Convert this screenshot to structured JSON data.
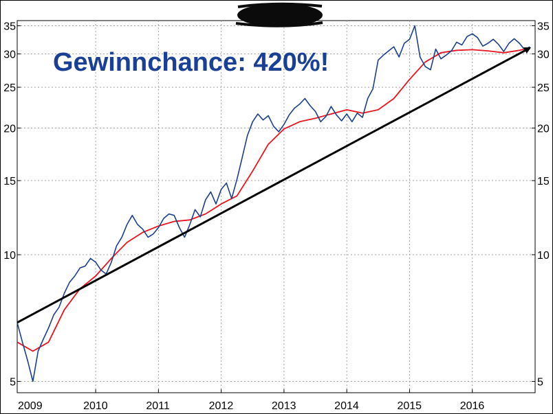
{
  "chart_data": {
    "type": "line",
    "title": "",
    "annotation": "Gewinnchance: 420%!",
    "xlabel": "",
    "ylabel": "",
    "y_scale": "log",
    "xlim": [
      "2008-10",
      "2017-01"
    ],
    "ylim": [
      4.7,
      36
    ],
    "grid": true,
    "y_ticks": [
      5,
      10,
      15,
      20,
      25,
      30,
      35
    ],
    "x_tick_labels": [
      "2009",
      "2010",
      "2011",
      "2012",
      "2013",
      "2014",
      "2015",
      "2016"
    ],
    "series": [
      {
        "role": "price",
        "color": "#1a3f8c",
        "x": [
          "2008-10",
          "2008-11",
          "2008-12",
          "2009-01",
          "2009-02",
          "2009-03",
          "2009-04",
          "2009-05",
          "2009-06",
          "2009-07",
          "2009-08",
          "2009-09",
          "2009-10",
          "2009-11",
          "2009-12",
          "2010-01",
          "2010-02",
          "2010-03",
          "2010-04",
          "2010-05",
          "2010-06",
          "2010-07",
          "2010-08",
          "2010-09",
          "2010-10",
          "2010-11",
          "2010-12",
          "2011-01",
          "2011-02",
          "2011-03",
          "2011-04",
          "2011-05",
          "2011-06",
          "2011-07",
          "2011-08",
          "2011-09",
          "2011-10",
          "2011-11",
          "2011-12",
          "2012-01",
          "2012-02",
          "2012-03",
          "2012-04",
          "2012-05",
          "2012-06",
          "2012-07",
          "2012-08",
          "2012-09",
          "2012-10",
          "2012-11",
          "2012-12",
          "2013-01",
          "2013-02",
          "2013-03",
          "2013-04",
          "2013-05",
          "2013-06",
          "2013-07",
          "2013-08",
          "2013-09",
          "2013-10",
          "2013-11",
          "2013-12",
          "2014-01",
          "2014-02",
          "2014-03",
          "2014-04",
          "2014-05",
          "2014-06",
          "2014-07",
          "2014-08",
          "2014-09",
          "2014-10",
          "2014-11",
          "2014-12",
          "2015-01",
          "2015-02",
          "2015-03",
          "2015-04",
          "2015-05",
          "2015-06",
          "2015-07",
          "2015-08",
          "2015-09",
          "2015-10",
          "2015-11",
          "2015-12",
          "2016-01",
          "2016-02",
          "2016-03",
          "2016-04",
          "2016-05",
          "2016-06",
          "2016-07",
          "2016-08",
          "2016-09",
          "2016-10",
          "2016-11",
          "2016-12"
        ],
        "y": [
          6.9,
          6.2,
          5.6,
          5.0,
          5.9,
          6.3,
          6.7,
          7.2,
          7.5,
          8.1,
          8.6,
          8.9,
          9.3,
          9.4,
          9.8,
          9.6,
          9.2,
          9.0,
          9.6,
          10.5,
          11.0,
          11.8,
          12.4,
          11.8,
          11.5,
          11.0,
          11.2,
          11.6,
          12.2,
          12.5,
          12.4,
          11.6,
          11.0,
          11.8,
          12.8,
          12.3,
          13.5,
          14.1,
          13.2,
          14.3,
          14.8,
          13.6,
          15.1,
          17.0,
          19.2,
          20.7,
          21.6,
          20.9,
          21.4,
          20.2,
          19.6,
          20.4,
          21.5,
          22.3,
          22.8,
          23.5,
          22.6,
          21.9,
          20.7,
          21.3,
          22.5,
          21.5,
          20.8,
          21.6,
          20.7,
          21.7,
          21.2,
          23.5,
          24.8,
          29.0,
          29.8,
          30.5,
          31.2,
          29.5,
          31.8,
          32.5,
          35.0,
          29.5,
          28.0,
          27.5,
          30.8,
          29.2,
          29.8,
          30.5,
          32.0,
          31.5,
          33.0,
          33.5,
          32.8,
          31.3,
          31.8,
          32.5,
          31.6,
          30.4,
          31.8,
          32.6,
          31.8,
          30.7,
          31.2
        ],
        "values_note": ""
      },
      {
        "role": "moving-average",
        "color": "#e8141e",
        "x": [
          "2008-10",
          "2009-01",
          "2009-04",
          "2009-07",
          "2009-10",
          "2010-01",
          "2010-04",
          "2010-07",
          "2010-10",
          "2011-01",
          "2011-04",
          "2011-07",
          "2011-10",
          "2012-01",
          "2012-04",
          "2012-07",
          "2012-10",
          "2013-01",
          "2013-04",
          "2013-07",
          "2013-10",
          "2014-01",
          "2014-04",
          "2014-07",
          "2014-10",
          "2015-01",
          "2015-04",
          "2015-07",
          "2015-10",
          "2016-01",
          "2016-04",
          "2016-07",
          "2016-10",
          "2016-12"
        ],
        "y": [
          6.2,
          5.9,
          6.2,
          7.4,
          8.3,
          8.9,
          9.8,
          10.7,
          11.3,
          11.7,
          12.0,
          12.1,
          12.5,
          13.2,
          13.8,
          15.8,
          18.3,
          19.9,
          20.7,
          21.1,
          21.6,
          22.1,
          21.7,
          22.1,
          23.5,
          26.1,
          28.7,
          30.2,
          30.6,
          30.7,
          30.5,
          30.2,
          30.6,
          31.0
        ]
      }
    ],
    "trendline": {
      "color": "#000000",
      "x": [
        "2008-10",
        "2016-12"
      ],
      "y": [
        6.9,
        31.0
      ],
      "arrow": true
    }
  },
  "colors": {
    "headline": "#1a3f96",
    "grid": "#a0a0a0",
    "redaction": "#0b0b0b"
  }
}
